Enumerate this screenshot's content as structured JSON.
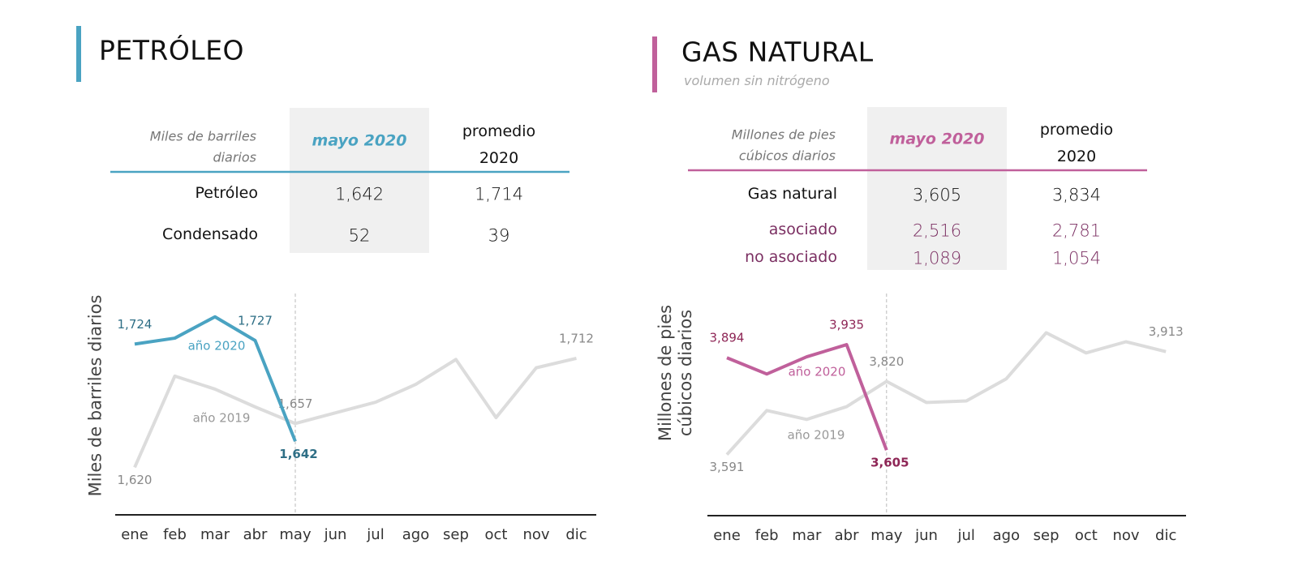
{
  "panels": [
    {
      "title": "PETRÓLEO",
      "color": "#4aa3c2",
      "table": {
        "unit": "Miles de barriles diarios",
        "columns": [
          "mayo 2020",
          "promedio 2020"
        ],
        "rows": [
          {
            "label": "Petróleo",
            "values": [
              "1,642",
              "1,714"
            ]
          },
          {
            "label": "Condensado",
            "values": [
              "52",
              "39"
            ]
          }
        ]
      }
    },
    {
      "title": "GAS NATURAL",
      "subtitle": "volumen sin nitrógeno",
      "color": "#c0609b",
      "table": {
        "unit": "Millones de pies cúbicos diarios",
        "columns": [
          "mayo 2020",
          "promedio 2020"
        ],
        "rows": [
          {
            "label": "Gas natural",
            "values": [
              "3,605",
              "3,834"
            ]
          },
          {
            "label": "asociado",
            "values": [
              "2,516",
              "2,781"
            ]
          },
          {
            "label": "no asociado",
            "values": [
              "1,089",
              "1,054"
            ]
          }
        ]
      }
    }
  ],
  "chart_data": [
    {
      "type": "line",
      "ylabel": "Miles de barriles diarios",
      "categories": [
        "ene",
        "feb",
        "mar",
        "abr",
        "may",
        "jun",
        "jul",
        "ago",
        "sep",
        "oct",
        "nov",
        "dic"
      ],
      "ylim": [
        1580,
        1768
      ],
      "series": [
        {
          "name": "año 2020",
          "color": "#4aa3c2",
          "values": [
            1724,
            1729,
            1747,
            1727,
            1642,
            null,
            null,
            null,
            null,
            null,
            null,
            null
          ],
          "value_labels": [
            "1,724",
            null,
            null,
            "1,727",
            "1,642",
            null,
            null,
            null,
            null,
            null,
            null,
            null
          ]
        },
        {
          "name": "año 2019",
          "color": "#dcdcdc",
          "values": [
            1620,
            1697,
            1686,
            1671,
            1657,
            1666,
            1675,
            1690,
            1711,
            1662,
            1704,
            1712
          ],
          "value_labels": [
            "1,620",
            null,
            null,
            null,
            "1,657",
            null,
            null,
            null,
            null,
            null,
            null,
            "1,712"
          ]
        }
      ]
    },
    {
      "type": "line",
      "ylabel": "Millones de pies cúbicos diarios",
      "categories": [
        "ene",
        "feb",
        "mar",
        "abr",
        "may",
        "jun",
        "jul",
        "ago",
        "sep",
        "oct",
        "nov",
        "dic"
      ],
      "ylim": [
        3400,
        4100
      ],
      "series": [
        {
          "name": "año 2020",
          "color": "#c0609b",
          "values": [
            3894,
            3843,
            3897,
            3935,
            3605,
            null,
            null,
            null,
            null,
            null,
            null,
            null
          ],
          "value_labels": [
            "3,894",
            null,
            null,
            "3,935",
            "3,605",
            null,
            null,
            null,
            null,
            null,
            null,
            null
          ]
        },
        {
          "name": "año 2019",
          "color": "#dcdcdc",
          "values": [
            3591,
            3729,
            3701,
            3741,
            3820,
            3754,
            3759,
            3828,
            3972,
            3909,
            3944,
            3913
          ],
          "value_labels": [
            "3,591",
            null,
            null,
            null,
            "3,820",
            null,
            null,
            null,
            null,
            null,
            null,
            "3,913"
          ]
        }
      ]
    }
  ]
}
